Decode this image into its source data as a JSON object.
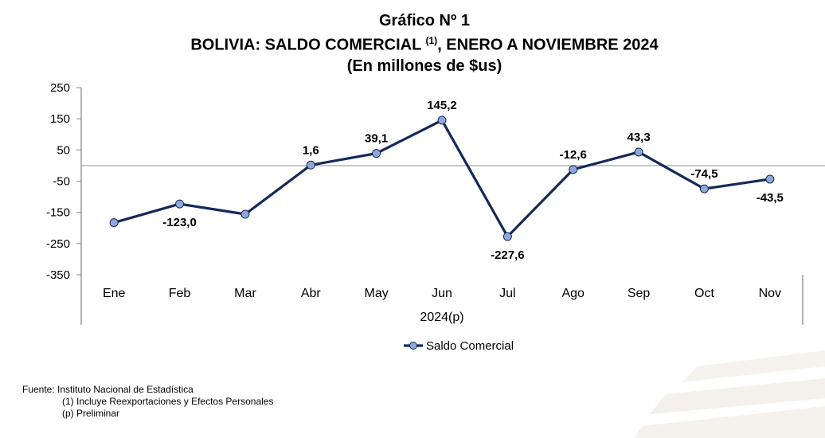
{
  "title": {
    "line1": "Gráfico Nº 1",
    "line2_main": "BOLIVIA: SALDO COMERCIAL ",
    "line2_sup": "(1)",
    "line2_rest": ", ENERO A NOVIEMBRE 2024",
    "line3": "(En millones de $us)"
  },
  "chart_data": {
    "type": "line",
    "categories": [
      "Ene",
      "Feb",
      "Mar",
      "Abr",
      "May",
      "Jun",
      "Jul",
      "Ago",
      "Sep",
      "Oct",
      "Nov"
    ],
    "xlabel": "2024(p)",
    "ylabel": "",
    "ylim": [
      -350,
      250
    ],
    "yticks": [
      250,
      150,
      50,
      -50,
      -150,
      -250,
      -350
    ],
    "ytick_labels": [
      "250",
      "150",
      "50",
      "-50",
      "-150",
      "-250",
      "-350"
    ],
    "legend_position": "bottom",
    "series": [
      {
        "name": "Saldo Comercial",
        "values": [
          -183.0,
          -123.0,
          -156.0,
          1.6,
          39.1,
          145.2,
          -227.6,
          -12.6,
          43.3,
          -74.5,
          -43.5
        ],
        "labels": [
          "",
          "-123,0",
          "",
          "1,6",
          "39,1",
          "145,2",
          "-227,6",
          "-12,6",
          "43,3",
          "-74,5",
          "-43,5"
        ],
        "label_pos": [
          "",
          "below",
          "",
          "above",
          "above",
          "above",
          "below",
          "above",
          "above",
          "above",
          "below"
        ],
        "line_color": "#14285a",
        "marker_color": "#8ea9d6"
      }
    ]
  },
  "footnotes": {
    "source": "Fuente: Instituto Nacional de Estadística",
    "note1": "(1) Incluye Reexportaciones y Efectos Personales",
    "note2": "(p) Preliminar"
  }
}
